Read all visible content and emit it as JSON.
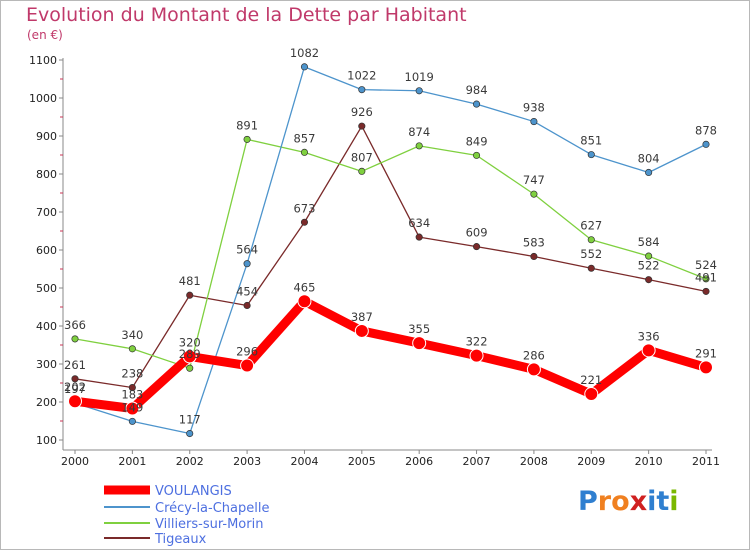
{
  "title": "Evolution du Montant de la Dette par Habitant",
  "unit": "(en €)",
  "logo": "Proxiti",
  "chart_data": {
    "type": "line",
    "x": [
      "2000",
      "2001",
      "2002",
      "2003",
      "2004",
      "2005",
      "2006",
      "2007",
      "2008",
      "2009",
      "2010",
      "2011"
    ],
    "ylim": [
      100,
      1100
    ],
    "yticks": [
      100,
      200,
      300,
      400,
      500,
      600,
      700,
      800,
      900,
      1000,
      1100
    ],
    "grid": false,
    "legend_position": "bottom-left",
    "series": [
      {
        "name": "VOULANGIS",
        "color": "#ff0000",
        "values": [
          202,
          183,
          320,
          296,
          465,
          387,
          355,
          322,
          286,
          221,
          336,
          291
        ]
      },
      {
        "name": "Crécy-la-Chapelle",
        "color": "#4d94cc",
        "values": [
          197,
          149,
          117,
          564,
          1082,
          1022,
          1019,
          984,
          938,
          851,
          804,
          878
        ]
      },
      {
        "name": "Villiers-sur-Morin",
        "color": "#7fd03f",
        "values": [
          366,
          340,
          289,
          891,
          857,
          807,
          874,
          849,
          747,
          627,
          584,
          524
        ]
      },
      {
        "name": "Tigeaux",
        "color": "#7a2a2a",
        "values": [
          261,
          238,
          481,
          454,
          673,
          926,
          634,
          609,
          583,
          552,
          522,
          491
        ]
      }
    ],
    "data_labels": [
      [
        "202",
        "183",
        "320",
        "296",
        "465",
        "387",
        "355",
        "322",
        "286",
        "221",
        "336",
        "291"
      ],
      [
        "197",
        "149",
        "117",
        "564",
        "1082",
        "1022",
        "1019",
        "984",
        "938",
        "851",
        "804",
        "878"
      ],
      [
        "366",
        "340",
        "289",
        "891",
        "857",
        "807",
        "874",
        "849",
        "747",
        "627",
        "584",
        "524"
      ],
      [
        "261",
        "238",
        "481",
        "454",
        "673",
        "926",
        "634",
        "609",
        "583",
        "552",
        "522",
        "491"
      ]
    ]
  },
  "colors": {
    "title": "#c0396a",
    "axis": "#888888",
    "tick_mark": "#cc3355",
    "logo": [
      "#2f7fd0",
      "#f08020",
      "#f08020",
      "#d02020",
      "#2f7fd0",
      "#2f7fd0",
      "#7ab800"
    ]
  }
}
